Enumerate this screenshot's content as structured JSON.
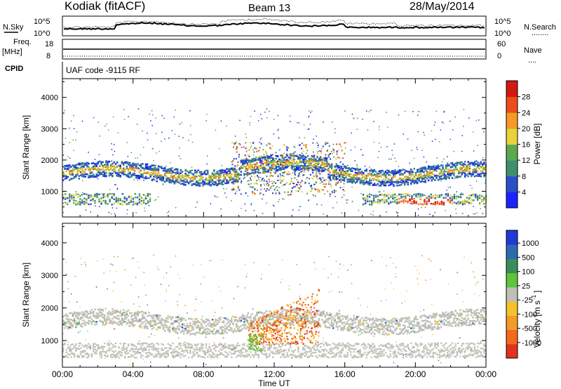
{
  "header": {
    "station": "Kodiak (fitACF)",
    "beam": "Beam 13",
    "date": "28/May/2014"
  },
  "top_panels": {
    "nsky_label": "N.Sky",
    "nsearch_label": "N.Search",
    "nsearch_line": "........",
    "noise_ticks_left": [
      "10^5",
      "10^0"
    ],
    "noise_ticks_right": [
      "10^5",
      "10^0"
    ],
    "freq_label_1": "Freq.",
    "freq_label_2": "[MHz]",
    "freq_ticks": [
      "18",
      "8"
    ],
    "nave_label": "Nave",
    "nave_line": "....",
    "nave_ticks": [
      "60",
      "0"
    ],
    "cpid_label": "CPID",
    "cpid_text": "UAF code -9115 RF"
  },
  "chart_data": [
    {
      "type": "heatmap",
      "title": "",
      "ylabel": "Slant Range [km]",
      "xlabel": "",
      "x_ticks": [
        "00:00",
        "04:00",
        "08:00",
        "12:00",
        "16:00",
        "20:00",
        "00:00"
      ],
      "y_ticks": [
        1000,
        2000,
        3000,
        4000
      ],
      "ylim": [
        180,
        4600
      ],
      "xlim_hours": [
        0,
        24
      ],
      "colorbar": {
        "label": "Power [dB]",
        "ticks": [
          4,
          8,
          12,
          16,
          20,
          24,
          28
        ],
        "range": [
          0,
          32
        ],
        "colors": [
          "#1a24ff",
          "#2a4fc8",
          "#2f6f9a",
          "#3f8e6f",
          "#5aa84f",
          "#a8c83a",
          "#e8d23a",
          "#f7a52a",
          "#f57a20",
          "#ef4c1c",
          "#e02418",
          "#c80f10"
        ]
      },
      "bands": [
        {
          "name": "lower echo band",
          "start_hour": 0,
          "end_hour": 24,
          "range_km": [
            1400,
            1800
          ]
        },
        {
          "name": "near-range echoes",
          "start_hour": 0,
          "end_hour": 5,
          "range_km": [
            550,
            900
          ]
        },
        {
          "name": "late near-range echoes",
          "start_hour": 17,
          "end_hour": 24,
          "range_km": [
            550,
            900
          ]
        },
        {
          "name": "midday high-range echoes",
          "start_hour": 10,
          "end_hour": 15,
          "range_km": [
            800,
            2700
          ]
        }
      ]
    },
    {
      "type": "heatmap",
      "title": "",
      "ylabel": "Slant Range [km]",
      "xlabel": "Time UT",
      "x_ticks": [
        "00:00",
        "04:00",
        "08:00",
        "12:00",
        "16:00",
        "20:00",
        "00:00"
      ],
      "y_ticks": [
        1000,
        2000,
        3000,
        4000
      ],
      "ylim": [
        180,
        4600
      ],
      "xlim_hours": [
        0,
        24
      ],
      "colorbar": {
        "label": "Velocity [m s",
        "label_exponent": "-1",
        "label_close": "]",
        "ticks": [
          "1000",
          "500",
          "100",
          "25",
          "-25",
          "-100",
          "-500",
          "-1000"
        ],
        "colors": [
          "#1f3ad8",
          "#2d6ab0",
          "#3a8c58",
          "#5ec43a",
          "#bfbfb8",
          "#f5c22a",
          "#f59a24",
          "#f26a1e",
          "#e2321a"
        ]
      },
      "bands": [
        {
          "name": "ground scatter band",
          "start_hour": 0,
          "end_hour": 24,
          "range_km": [
            1400,
            1800
          ]
        },
        {
          "name": "near-range ground scatter",
          "start_hour": 0,
          "end_hour": 24,
          "range_km": [
            500,
            900
          ]
        },
        {
          "name": "negative velocity echoes",
          "start_hour": 10.5,
          "end_hour": 14.5,
          "range_km": [
            900,
            2600
          ]
        }
      ]
    }
  ]
}
